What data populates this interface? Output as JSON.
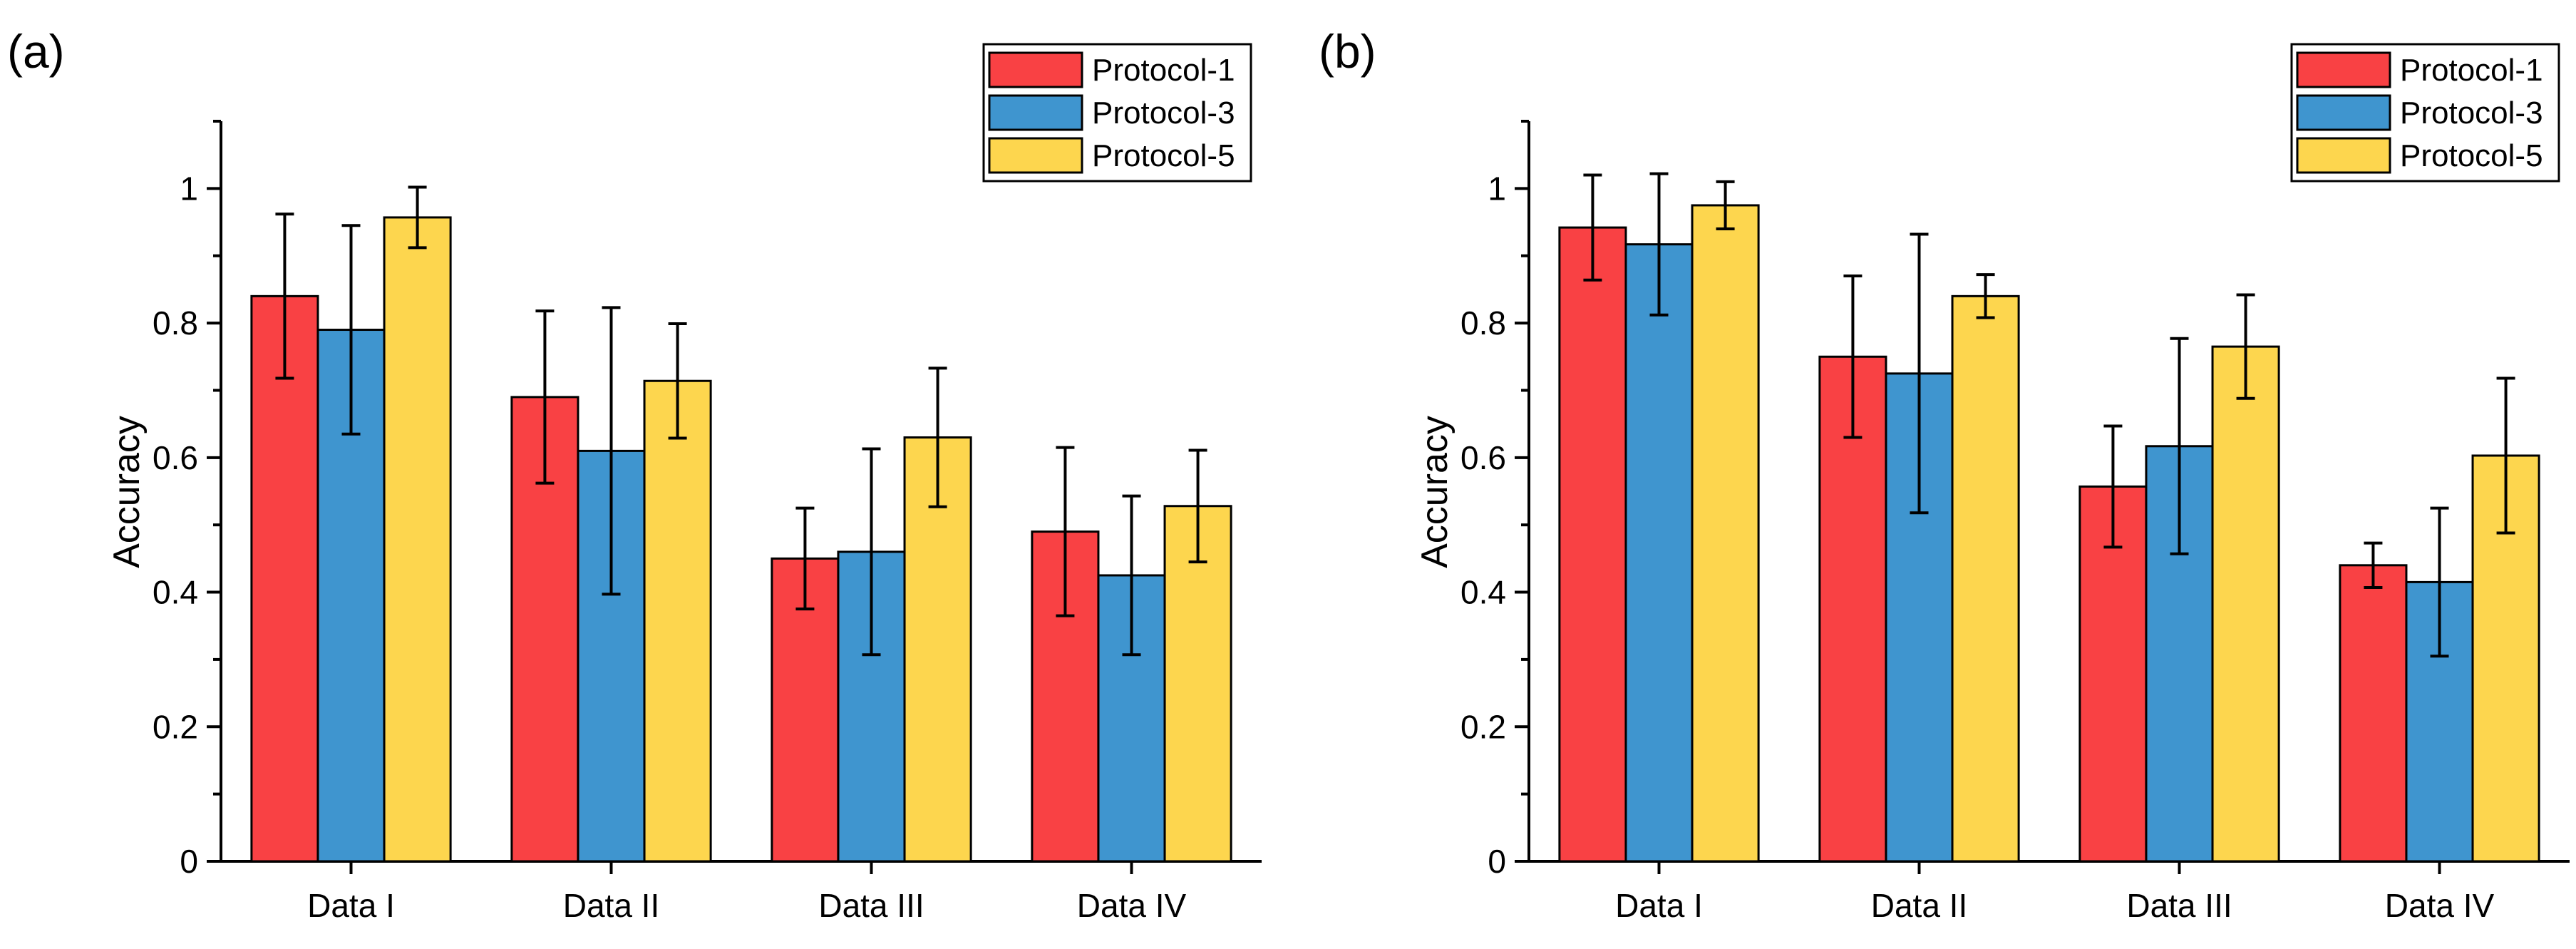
{
  "chart_data": [
    {
      "panel_label": "(a)",
      "type": "bar",
      "categories": [
        "Data I",
        "Data II",
        "Data III",
        "Data IV"
      ],
      "ylabel": "Accuracy",
      "xlabel": "",
      "ylim": [
        0,
        1.1
      ],
      "yticks": [
        0,
        0.2,
        0.4,
        0.6,
        0.8,
        1
      ],
      "ytick_labels": [
        "0",
        "0.2",
        "0.4",
        "0.6",
        "0.8",
        "1"
      ],
      "legend_position": "top-right",
      "series": [
        {
          "name": "Protocol-1",
          "color": "#f94144",
          "values": [
            0.84,
            0.69,
            0.45,
            0.49
          ],
          "errors": [
            0.122,
            0.128,
            0.075,
            0.125
          ]
        },
        {
          "name": "Protocol-3",
          "color": "#3f95cf",
          "values": [
            0.79,
            0.61,
            0.46,
            0.425
          ],
          "errors": [
            0.155,
            0.213,
            0.153,
            0.118
          ]
        },
        {
          "name": "Protocol-5",
          "color": "#fdd64e",
          "values": [
            0.957,
            0.714,
            0.63,
            0.528
          ],
          "errors": [
            0.045,
            0.085,
            0.103,
            0.083
          ]
        }
      ]
    },
    {
      "panel_label": "(b)",
      "type": "bar",
      "categories": [
        "Data I",
        "Data II",
        "Data III",
        "Data IV"
      ],
      "ylabel": "Accuracy",
      "xlabel": "",
      "ylim": [
        0,
        1.1
      ],
      "yticks": [
        0,
        0.2,
        0.4,
        0.6,
        0.8,
        1
      ],
      "ytick_labels": [
        "0",
        "0.2",
        "0.4",
        "0.6",
        "0.8",
        "1"
      ],
      "legend_position": "top-right",
      "series": [
        {
          "name": "Protocol-1",
          "color": "#f94144",
          "values": [
            0.942,
            0.75,
            0.557,
            0.44
          ],
          "errors": [
            0.078,
            0.12,
            0.09,
            0.033
          ]
        },
        {
          "name": "Protocol-3",
          "color": "#3f95cf",
          "values": [
            0.917,
            0.725,
            0.617,
            0.415
          ],
          "errors": [
            0.105,
            0.207,
            0.16,
            0.11
          ]
        },
        {
          "name": "Protocol-5",
          "color": "#fdd64e",
          "values": [
            0.975,
            0.84,
            0.765,
            0.603
          ],
          "errors": [
            0.035,
            0.032,
            0.077,
            0.115
          ]
        }
      ]
    }
  ]
}
